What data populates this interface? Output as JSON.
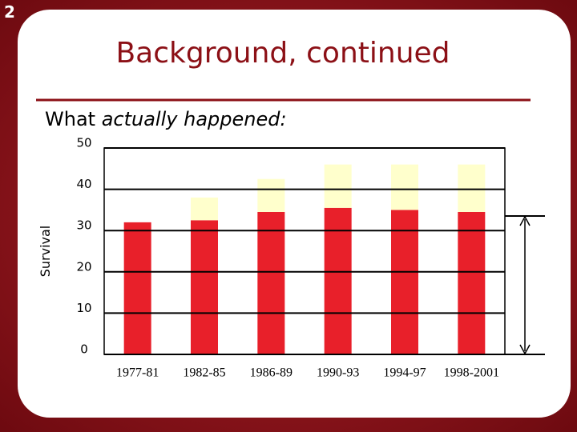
{
  "slide_number": "2",
  "title": "Background, continued",
  "subtitle": {
    "plain": "What",
    "italic": "actually happened:"
  },
  "chart_data": {
    "type": "stacked_bar",
    "y_label": "Survival",
    "categories": [
      "1977-81",
      "1982-85",
      "1986-89",
      "1990-93",
      "1994-97",
      "1998-2001"
    ],
    "series": [
      {
        "color": "#e8202a",
        "values": [
          32,
          32.5,
          34.5,
          35.5,
          35,
          34.5
        ]
      },
      {
        "color": "#ffffcc",
        "values": [
          0,
          5.5,
          8,
          10.5,
          11,
          11.5
        ]
      }
    ],
    "ylim": [
      0,
      50
    ],
    "yticks": [
      0,
      10,
      20,
      30,
      40,
      50
    ],
    "grid": true
  }
}
